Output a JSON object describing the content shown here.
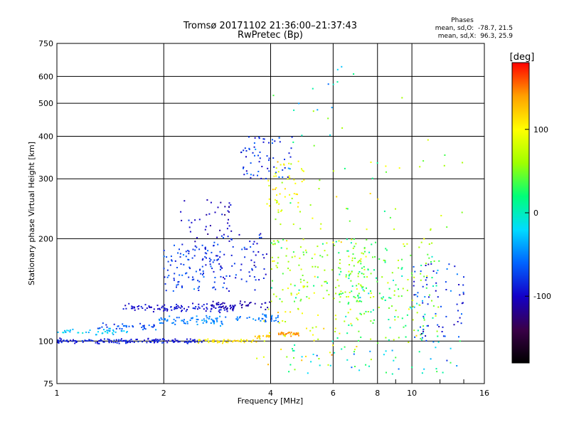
{
  "chart_data": {
    "type": "scatter",
    "title": "Tromsø 20171102 21:36:00–21:37:43",
    "subtitle": "RwPretec (Bp)",
    "xlabel": "Frequency [MHz]",
    "ylabel": "Stationary phase Virtual Height [km]",
    "x_scale": "log",
    "y_scale": "log",
    "xlim": [
      1,
      16
    ],
    "ylim": [
      75,
      750
    ],
    "x_ticks": [
      1,
      2,
      4,
      6,
      8,
      10,
      16
    ],
    "x_minor_ticks": [
      9,
      12,
      14
    ],
    "y_ticks": [
      75,
      100,
      200,
      300,
      400,
      500,
      600,
      750
    ],
    "grid": true,
    "phase_stats": {
      "title": "Phases",
      "line_o": "mean, sd,O:  -78.7, 21.5",
      "line_x": "mean, sd,X:  96.3, 25.9"
    },
    "colorbar": {
      "label": "[deg]",
      "range": [
        -180,
        180
      ],
      "ticks": [
        100,
        0,
        -100
      ],
      "colormap": [
        "#000000",
        "#3a0048",
        "#1400c8",
        "#0064ff",
        "#00dcff",
        "#00ff78",
        "#a0ff00",
        "#ffff00",
        "#ffa000",
        "#ff0000"
      ]
    },
    "traces": [
      {
        "kind": "band",
        "x_range": [
          1.0,
          2.6
        ],
        "y": 100,
        "spread": 2.5,
        "phase": -90,
        "phase_spread": 20,
        "n": 160
      },
      {
        "kind": "band",
        "x_range": [
          1.0,
          1.6
        ],
        "y": 107,
        "spread": 3,
        "phase": -30,
        "phase_spread": 30,
        "n": 45
      },
      {
        "kind": "band",
        "x_range": [
          2.5,
          3.6
        ],
        "y": 100,
        "spread": 2,
        "phase": 110,
        "phase_spread": 25,
        "n": 50
      },
      {
        "kind": "band",
        "x_range": [
          3.6,
          4.0
        ],
        "y": 103,
        "spread": 2,
        "phase": 125,
        "phase_spread": 20,
        "n": 15
      },
      {
        "kind": "band",
        "x_range": [
          4.2,
          4.8
        ],
        "y": 105,
        "spread": 2,
        "phase": 145,
        "phase_spread": 12,
        "n": 35
      },
      {
        "kind": "band",
        "x_range": [
          1.3,
          1.9
        ],
        "y": 110,
        "spread": 4,
        "phase": -70,
        "phase_spread": 30,
        "n": 35
      },
      {
        "kind": "band",
        "x_range": [
          1.5,
          3.2
        ],
        "y": 125,
        "spread": 5,
        "phase": -95,
        "phase_spread": 20,
        "n": 110
      },
      {
        "kind": "band",
        "x_range": [
          1.9,
          3.0
        ],
        "y": 115,
        "spread": 5,
        "phase": -50,
        "phase_spread": 25,
        "n": 70
      },
      {
        "kind": "band",
        "x_range": [
          2.7,
          4.0
        ],
        "y": 128,
        "spread": 6,
        "phase": -110,
        "phase_spread": 15,
        "n": 40
      },
      {
        "kind": "band",
        "x_range": [
          3.2,
          4.2
        ],
        "y": 117,
        "spread": 4,
        "phase": -55,
        "phase_spread": 20,
        "n": 35
      },
      {
        "kind": "blob",
        "x_range": [
          2.0,
          2.9
        ],
        "y_range": [
          140,
          195
        ],
        "phase": -75,
        "phase_spread": 35,
        "n": 110
      },
      {
        "kind": "blob",
        "x_range": [
          2.2,
          3.1
        ],
        "y_range": [
          195,
          260
        ],
        "phase": -100,
        "phase_spread": 35,
        "n": 40
      },
      {
        "kind": "blob",
        "x_range": [
          2.8,
          3.9
        ],
        "y_range": [
          140,
          210
        ],
        "phase": -85,
        "phase_spread": 45,
        "n": 70
      },
      {
        "kind": "blob",
        "x_range": [
          3.3,
          4.6
        ],
        "y_range": [
          300,
          400
        ],
        "phase": -75,
        "phase_spread": 55,
        "n": 65
      },
      {
        "kind": "blob",
        "x_range": [
          3.9,
          5.0
        ],
        "y_range": [
          220,
          340
        ],
        "phase": 90,
        "phase_spread": 50,
        "n": 55
      },
      {
        "kind": "blob",
        "x_range": [
          4.0,
          7.5
        ],
        "y_range": [
          130,
          200
        ],
        "phase": 60,
        "phase_spread": 80,
        "n": 140
      },
      {
        "kind": "blob",
        "x_range": [
          6.0,
          12.0
        ],
        "y_range": [
          100,
          200
        ],
        "phase": 40,
        "phase_spread": 90,
        "n": 210
      },
      {
        "kind": "blob",
        "x_range": [
          10.0,
          14.0
        ],
        "y_range": [
          100,
          170
        ],
        "phase": -80,
        "phase_spread": 60,
        "n": 70
      },
      {
        "kind": "blob",
        "x_range": [
          3.5,
          7.0
        ],
        "y_range": [
          85,
          125
        ],
        "phase": 90,
        "phase_spread": 70,
        "n": 45
      },
      {
        "kind": "blob",
        "x_range": [
          4.5,
          14.0
        ],
        "y_range": [
          80,
          100
        ],
        "phase": 0,
        "phase_spread": 90,
        "n": 55
      },
      {
        "kind": "blob",
        "x_range": [
          4.5,
          14.0
        ],
        "y_range": [
          210,
          400
        ],
        "phase": 60,
        "phase_spread": 80,
        "n": 40
      },
      {
        "kind": "blob",
        "x_range": [
          4.0,
          10.5
        ],
        "y_range": [
          400,
          650
        ],
        "phase": 0,
        "phase_spread": 100,
        "n": 18
      }
    ]
  }
}
